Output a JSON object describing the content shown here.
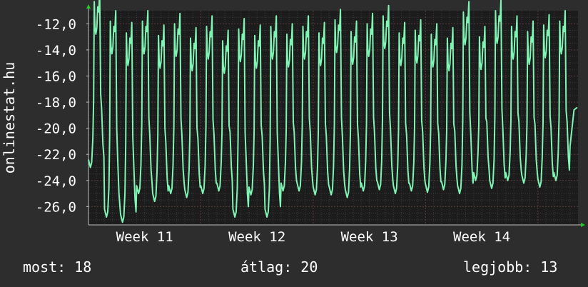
{
  "chart_data": {
    "type": "line",
    "ylabel": "onlinestat.hu",
    "ylim": [
      -27.4,
      -11.0
    ],
    "yticks": [
      -12,
      -14,
      -16,
      -18,
      -20,
      -22,
      -24,
      -26
    ],
    "ytick_labels": [
      "-12,0",
      "-14,0",
      "-16,0",
      "-18,0",
      "-20,0",
      "-22,0",
      "-24,0",
      "-26,0"
    ],
    "x_range_days": [
      0,
      30.5
    ],
    "xticks": [
      {
        "day": 3.5,
        "label": "Week 11"
      },
      {
        "day": 10.5,
        "label": "Week 12"
      },
      {
        "day": 17.5,
        "label": "Week 13"
      },
      {
        "day": 24.5,
        "label": "Week 14"
      }
    ],
    "grid": true,
    "colors": {
      "background": "#2d2d2d",
      "plot": "#1c1c1c",
      "grid": "#5a3a3a",
      "line": "#7ff5b4",
      "axis": "#bfbfbf",
      "arrow": "#22cc22"
    },
    "series": [
      {
        "day_max": [
          -12.8,
          -14.3,
          -15.2,
          -14.3,
          -15.4,
          -14.5,
          -15.6,
          -14.7,
          -15.8,
          -14.9,
          -15.4,
          -14.7,
          -15.3,
          -14.7,
          -15.2,
          -14.2,
          -15.1,
          -14.5,
          -13.9,
          -15.2,
          -15.0,
          -15.3,
          -15.6,
          -13.6,
          -15.5,
          -13.5,
          -14.7,
          -15.1,
          -14.6,
          -14.3
        ],
        "day_min": [
          -23.0,
          -26.8,
          -27.2,
          -25.0,
          -25.6,
          -25.0,
          -25.3,
          -25.0,
          -24.8,
          -26.8,
          -25.1,
          -26.8,
          -24.8,
          -24.8,
          -25.1,
          -25.1,
          -25.3,
          -24.8,
          -24.7,
          -25.0,
          -24.8,
          -24.9,
          -24.7,
          -25.0,
          -24.0,
          -24.6,
          -24.0,
          -24.2,
          -24.5,
          -24.0
        ],
        "last_value": -18.4
      }
    ]
  },
  "footer": {
    "now_label": "most: 18",
    "avg_label": "átlag: 20",
    "best_label": "legjobb: 13"
  }
}
